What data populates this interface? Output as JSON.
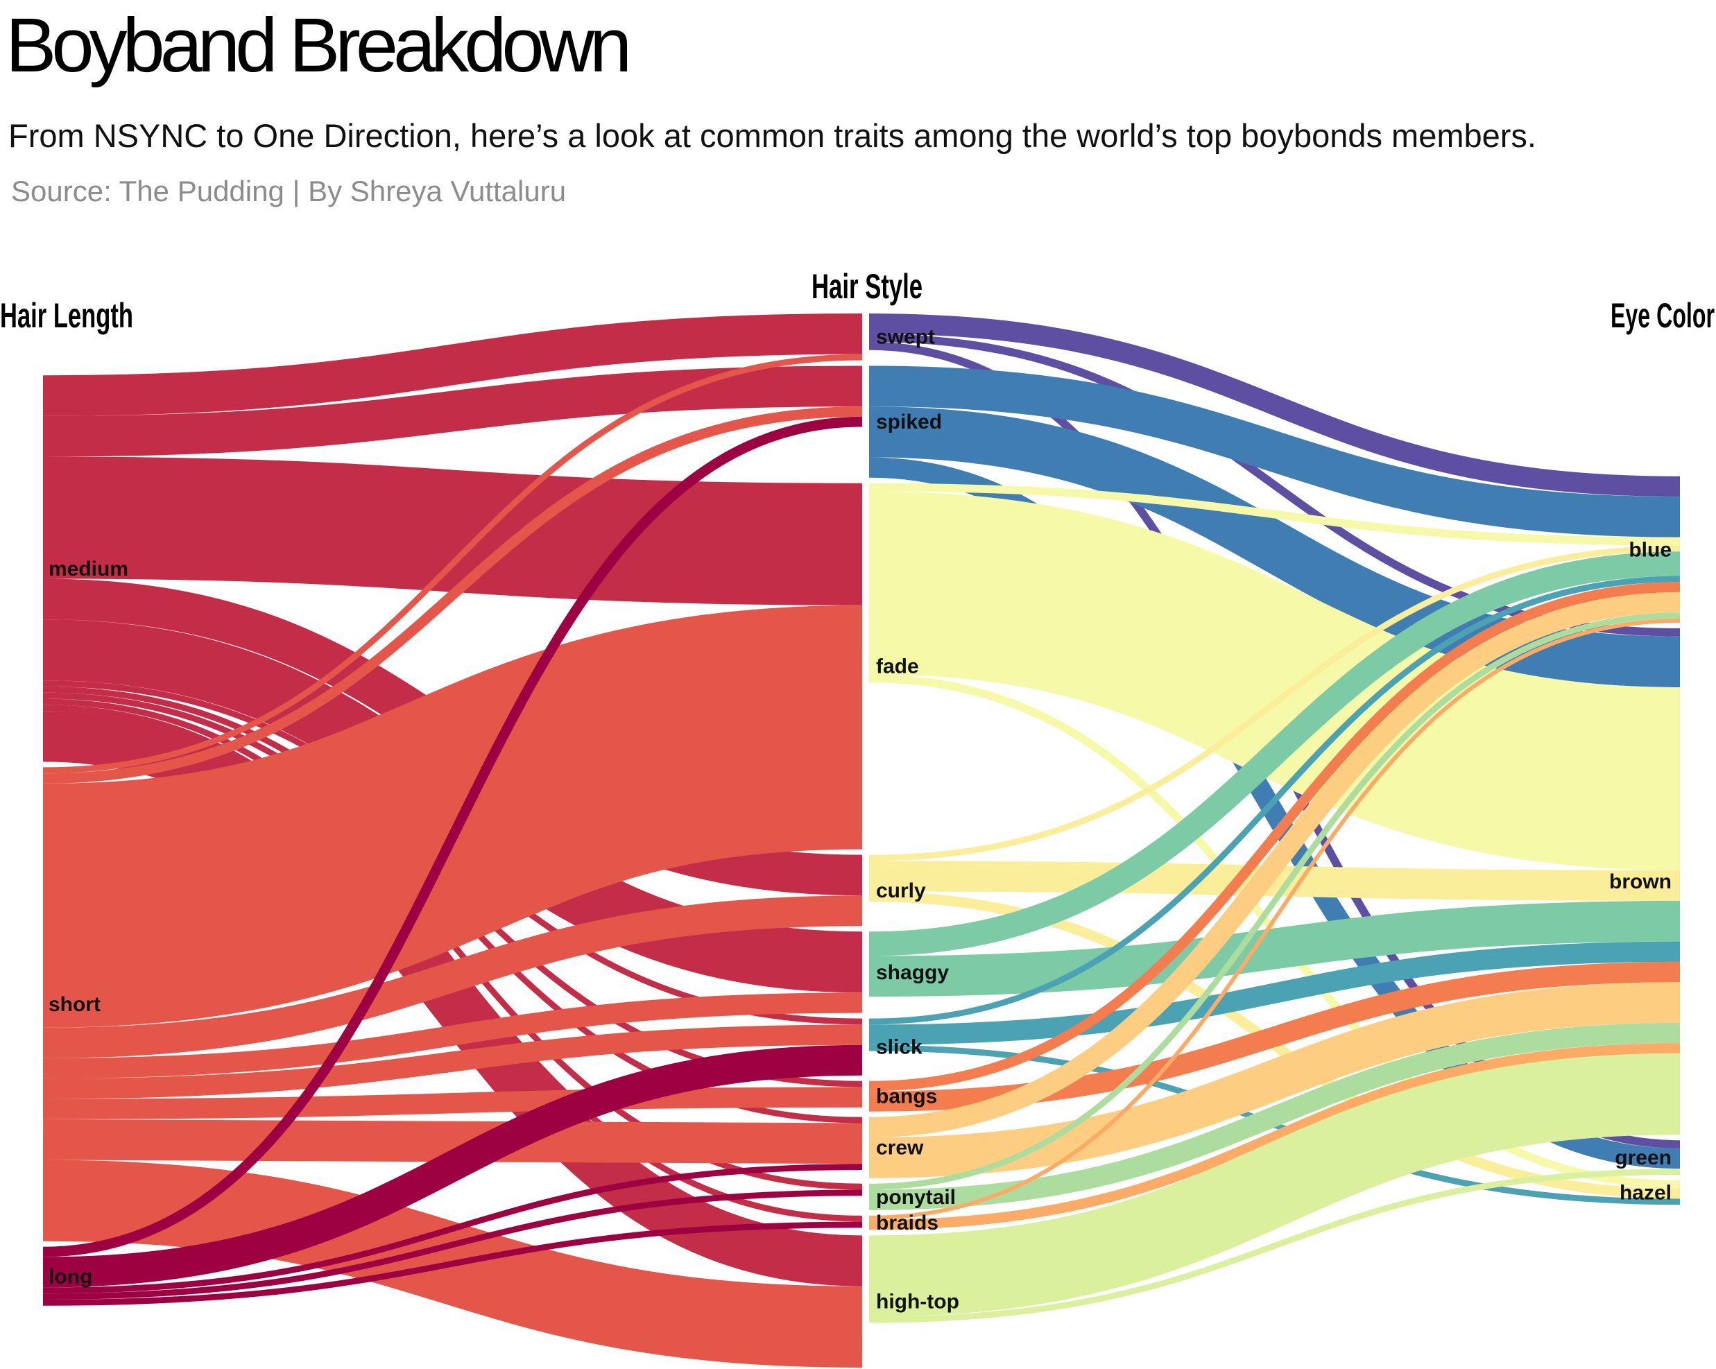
{
  "header": {
    "title": "Boyband Breakdown",
    "subtitle": "From NSYNC to One Direction, here’s a look at common traits among the world’s top boybonds members.",
    "source": "Source: The Pudding | By Shreya Vuttaluru"
  },
  "chart_data": {
    "type": "sankey",
    "title": "Boyband Breakdown",
    "columns": [
      "Hair Length",
      "Hair Style",
      "Eye Color"
    ],
    "nodes": {
      "Hair Length": [
        "medium",
        "short",
        "long"
      ],
      "Hair Style": [
        "swept",
        "spiked",
        "fade",
        "curly",
        "shaggy",
        "slick",
        "bangs",
        "crew",
        "ponytail",
        "braids",
        "high-top"
      ],
      "Eye Color": [
        "blue",
        "brown",
        "green",
        "hazel"
      ]
    },
    "colors": {
      "medium": "#c42d47",
      "short": "#e35649",
      "long": "#9e0142",
      "swept": "#5e4fa2",
      "spiked": "#3f7db3",
      "fade": "#f5f9a8",
      "curly": "#fbee9a",
      "shaggy": "#7ccba6",
      "slick": "#4aa2b2",
      "bangs": "#f47d4f",
      "crew": "#fdce82",
      "ponytail": "#addd9e",
      "braids": "#fcab66",
      "high-top": "#daf09c"
    },
    "links": [
      {
        "source": "medium",
        "target": "swept",
        "value": 2
      },
      {
        "source": "medium",
        "target": "spiked",
        "value": 2
      },
      {
        "source": "medium",
        "target": "fade",
        "value": 6
      },
      {
        "source": "medium",
        "target": "curly",
        "value": 2
      },
      {
        "source": "medium",
        "target": "shaggy",
        "value": 3
      },
      {
        "source": "medium",
        "target": "slick",
        "value": 0.3
      },
      {
        "source": "medium",
        "target": "bangs",
        "value": 0.3
      },
      {
        "source": "medium",
        "target": "crew",
        "value": 0.3
      },
      {
        "source": "medium",
        "target": "ponytail",
        "value": 0.3
      },
      {
        "source": "medium",
        "target": "braids",
        "value": 0.3
      },
      {
        "source": "medium",
        "target": "high-top",
        "value": 2.5
      },
      {
        "source": "short",
        "target": "swept",
        "value": 0.3
      },
      {
        "source": "short",
        "target": "spiked",
        "value": 0.5
      },
      {
        "source": "short",
        "target": "fade",
        "value": 12
      },
      {
        "source": "short",
        "target": "curly",
        "value": 1.5
      },
      {
        "source": "short",
        "target": "shaggy",
        "value": 1
      },
      {
        "source": "short",
        "target": "slick",
        "value": 1
      },
      {
        "source": "short",
        "target": "bangs",
        "value": 1
      },
      {
        "source": "short",
        "target": "crew",
        "value": 2
      },
      {
        "source": "short",
        "target": "high-top",
        "value": 4
      },
      {
        "source": "long",
        "target": "spiked",
        "value": 0.5
      },
      {
        "source": "long",
        "target": "slick",
        "value": 1.5
      },
      {
        "source": "long",
        "target": "crew",
        "value": 0.3
      },
      {
        "source": "long",
        "target": "ponytail",
        "value": 0.3
      },
      {
        "source": "long",
        "target": "braids",
        "value": 0.3
      },
      {
        "source": "swept",
        "target": "blue",
        "value": 1
      },
      {
        "source": "swept",
        "target": "brown",
        "value": 0.4
      },
      {
        "source": "swept",
        "target": "green",
        "value": 0.4
      },
      {
        "source": "spiked",
        "target": "blue",
        "value": 2
      },
      {
        "source": "spiked",
        "target": "brown",
        "value": 2.5
      },
      {
        "source": "spiked",
        "target": "green",
        "value": 1
      },
      {
        "source": "fade",
        "target": "blue",
        "value": 0.4
      },
      {
        "source": "fade",
        "target": "brown",
        "value": 9
      },
      {
        "source": "fade",
        "target": "hazel",
        "value": 0.4
      },
      {
        "source": "curly",
        "target": "brown",
        "value": 1.5
      },
      {
        "source": "curly",
        "target": "hazel",
        "value": 0.5
      },
      {
        "source": "curly",
        "target": "blue",
        "value": 0.3
      },
      {
        "source": "shaggy",
        "target": "blue",
        "value": 1.2
      },
      {
        "source": "shaggy",
        "target": "brown",
        "value": 2
      },
      {
        "source": "slick",
        "target": "blue",
        "value": 0.3
      },
      {
        "source": "slick",
        "target": "brown",
        "value": 1
      },
      {
        "source": "slick",
        "target": "hazel",
        "value": 0.3
      },
      {
        "source": "bangs",
        "target": "blue",
        "value": 0.5
      },
      {
        "source": "bangs",
        "target": "brown",
        "value": 1
      },
      {
        "source": "crew",
        "target": "blue",
        "value": 1
      },
      {
        "source": "crew",
        "target": "brown",
        "value": 2
      },
      {
        "source": "ponytail",
        "target": "brown",
        "value": 1
      },
      {
        "source": "ponytail",
        "target": "blue",
        "value": 0.3
      },
      {
        "source": "braids",
        "target": "brown",
        "value": 0.5
      },
      {
        "source": "braids",
        "target": "blue",
        "value": 0.2
      },
      {
        "source": "high-top",
        "target": "brown",
        "value": 4
      },
      {
        "source": "high-top",
        "target": "green",
        "value": 0.3
      }
    ]
  }
}
